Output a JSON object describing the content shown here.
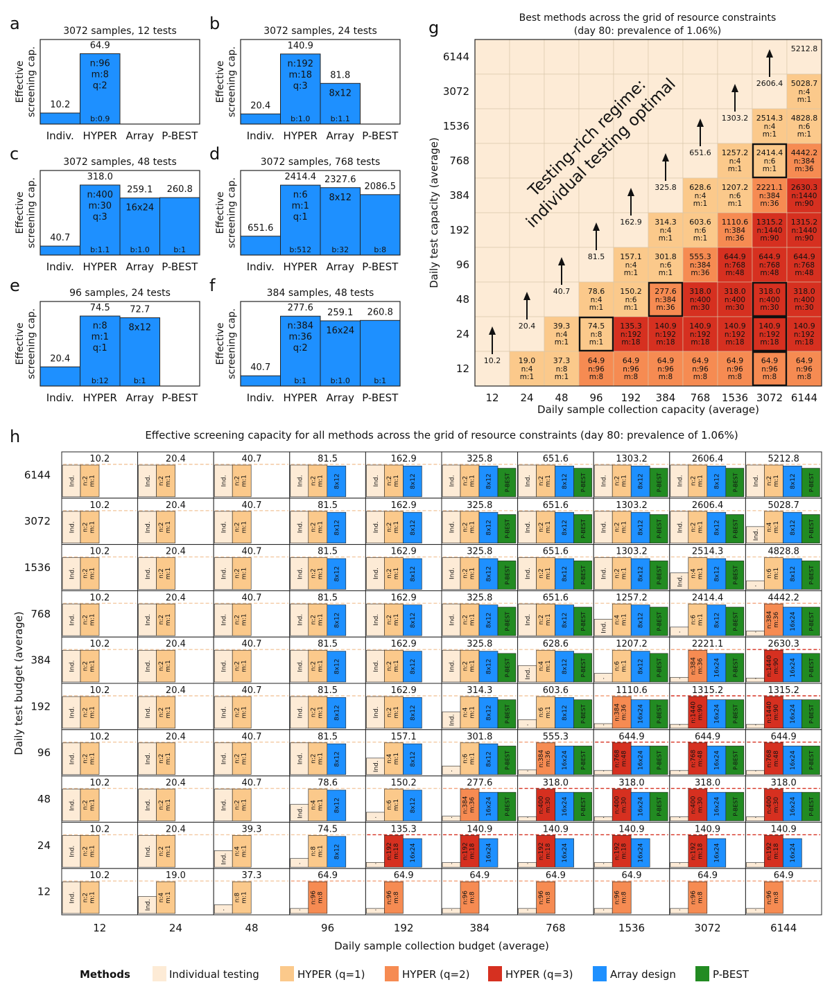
{
  "colors": {
    "individual": "#FDEBD6",
    "hyper_q1": "#FBC98B",
    "hyper_q2": "#F68B52",
    "hyper_q3": "#D63020",
    "array": "#1E90FF",
    "pbest": "#228B22",
    "grid_best": "#FDEBD6"
  },
  "chart_data": [
    {
      "panel": "a",
      "type": "bar",
      "title": "3072 samples, 12 tests",
      "ylabel": "Effective screening cap.",
      "categories": [
        "Indiv.",
        "HYPER",
        "Array",
        "P-BEST"
      ],
      "values": [
        10.2,
        64.9,
        null,
        null
      ],
      "value_labels": [
        "10.2",
        "64.9",
        "",
        ""
      ],
      "in_bar": [
        "",
        "n:96\nm:8\nq:2",
        "",
        ""
      ],
      "b_labels": [
        "",
        "b:0.9",
        "",
        ""
      ],
      "ylim": [
        0,
        78
      ]
    },
    {
      "panel": "b",
      "type": "bar",
      "title": "3072 samples, 24 tests",
      "ylabel": "Effective screening cap.",
      "categories": [
        "Indiv.",
        "HYPER",
        "Array",
        "P-BEST"
      ],
      "values": [
        20.4,
        140.9,
        81.8,
        null
      ],
      "value_labels": [
        "20.4",
        "140.9",
        "81.8",
        ""
      ],
      "in_bar": [
        "",
        "n:192\nm:18\nq:3",
        "8x12",
        ""
      ],
      "b_labels": [
        "",
        "b:1.0",
        "b:1.1",
        ""
      ],
      "ylim": [
        0,
        170
      ]
    },
    {
      "panel": "c",
      "type": "bar",
      "title": "3072 samples, 48 tests",
      "ylabel": "Effective screening cap.",
      "categories": [
        "Indiv.",
        "HYPER",
        "Array",
        "P-BEST"
      ],
      "values": [
        40.7,
        318.0,
        259.1,
        260.8
      ],
      "value_labels": [
        "40.7",
        "318.0",
        "259.1",
        "260.8"
      ],
      "in_bar": [
        "",
        "n:400\nm:30\nq:3",
        "16x24",
        ""
      ],
      "b_labels": [
        "",
        "b:1.1",
        "b:1.0",
        "b:1"
      ],
      "ylim": [
        0,
        384
      ]
    },
    {
      "panel": "d",
      "type": "bar",
      "title": "3072 samples, 768 tests",
      "ylabel": "Effective screening cap.",
      "categories": [
        "Indiv.",
        "HYPER",
        "Array",
        "P-BEST"
      ],
      "values": [
        651.6,
        2414.4,
        2327.6,
        2086.5
      ],
      "value_labels": [
        "651.6",
        "2414.4",
        "2327.6",
        "2086.5"
      ],
      "in_bar": [
        "",
        "n:6\nm:1\nq:1",
        "8x12",
        ""
      ],
      "b_labels": [
        "",
        "b:512",
        "b:32",
        "b:8"
      ],
      "ylim": [
        0,
        2920
      ]
    },
    {
      "panel": "e",
      "type": "bar",
      "title": "96 samples, 24 tests",
      "ylabel": "Effective screening cap.",
      "categories": [
        "Indiv.",
        "HYPER",
        "Array",
        "P-BEST"
      ],
      "values": [
        20.4,
        74.5,
        72.7,
        null
      ],
      "value_labels": [
        "20.4",
        "74.5",
        "72.7",
        ""
      ],
      "in_bar": [
        "",
        "n:8\nm:1\nq:1",
        "8x12",
        ""
      ],
      "b_labels": [
        "",
        "b:12",
        "b:1",
        ""
      ],
      "ylim": [
        0,
        90
      ]
    },
    {
      "panel": "f",
      "type": "bar",
      "title": "384 samples, 48 tests",
      "ylabel": "Effective screening cap.",
      "categories": [
        "Indiv.",
        "HYPER",
        "Array",
        "P-BEST"
      ],
      "values": [
        40.7,
        277.6,
        259.1,
        260.8
      ],
      "value_labels": [
        "40.7",
        "277.6",
        "259.1",
        "260.8"
      ],
      "in_bar": [
        "",
        "n:384\nm:36\nq:2",
        "16x24",
        ""
      ],
      "b_labels": [
        "",
        "b:1",
        "b:1.0",
        "b:1"
      ],
      "ylim": [
        0,
        336
      ]
    },
    {
      "panel": "g",
      "type": "heatmap",
      "title": "Best methods across the grid of resource constraints",
      "subtitle": "(day 80: prevalence of 1.06%)",
      "xlabel": "Daily sample collection capacity (average)",
      "ylabel": "Daily test capacity (average)",
      "x": [
        "12",
        "24",
        "48",
        "96",
        "192",
        "384",
        "768",
        "1536",
        "3072",
        "6144"
      ],
      "y": [
        "6144",
        "3072",
        "1536",
        "768",
        "384",
        "192",
        "96",
        "48",
        "24",
        "12"
      ],
      "annotation": "Testing-rich regime:\nindividual testing optimal",
      "cells": [
        [
          "",
          "",
          "",
          "",
          "",
          "",
          "",
          "",
          "",
          "5212.8|"
        ],
        [
          "",
          "",
          "",
          "",
          "",
          "",
          "",
          "",
          "2606.4|",
          "5028.7|n:4\nm:1|1"
        ],
        [
          "",
          "",
          "",
          "",
          "",
          "",
          "",
          "1303.2|",
          "2514.3|n:4\nm:1|1",
          "4828.8|n:6\nm:1|1"
        ],
        [
          "",
          "",
          "",
          "",
          "",
          "",
          "651.6|",
          "1257.2|n:4\nm:1|1",
          "2414.4|n:6\nm:1|1",
          "4442.2|n:384\nm:36|2"
        ],
        [
          "",
          "",
          "",
          "",
          "",
          "325.8|",
          "628.6|n:4\nm:1|1",
          "1207.2|n:6\nm:1|1",
          "2221.1|n:384\nm:36|2",
          "2630.3|n:1440\nm:90|3"
        ],
        [
          "",
          "",
          "",
          "",
          "162.9|",
          "314.3|n:4\nm:1|1",
          "603.6|n:6\nm:1|1",
          "1110.6|n:384\nm:36|2",
          "1315.2|n:1440\nm:90|3",
          "1315.2|n:1440\nm:90|3"
        ],
        [
          "",
          "",
          "",
          "81.5|",
          "157.1|n:4\nm:1|1",
          "301.8|n:6\nm:1|1",
          "555.3|n:384\nm:36|2",
          "644.9|n:768\nm:48|3",
          "644.9|n:768\nm:48|3",
          "644.9|n:768\nm:48|3"
        ],
        [
          "",
          "",
          "40.7|",
          "78.6|n:4\nm:1|1",
          "150.2|n:6\nm:1|1",
          "277.6|n:384\nm:36|2",
          "318.0|n:400\nm:30|3",
          "318.0|n:400\nm:30|3",
          "318.0|n:400\nm:30|3",
          "318.0|n:400\nm:30|3"
        ],
        [
          "",
          "20.4|",
          "39.3|n:4\nm:1|1",
          "74.5|n:8\nm:1|1",
          "135.3|n:192\nm:18|3",
          "140.9|n:192\nm:18|3",
          "140.9|n:192\nm:18|3",
          "140.9|n:192\nm:18|3",
          "140.9|n:192\nm:18|3",
          "140.9|n:192\nm:18|3"
        ],
        [
          "10.2|",
          "19.0|n:4\nm:1|1",
          "37.3|n:8\nm:1|1",
          "64.9|n:96\nm:8|2",
          "64.9|n:96\nm:8|2",
          "64.9|n:96\nm:8|2",
          "64.9|n:96\nm:8|2",
          "64.9|n:96\nm:8|2",
          "64.9|n:96\nm:8|2",
          "64.9|n:96\nm:8|2"
        ]
      ],
      "highlighted": [
        [
          3,
          8
        ],
        [
          7,
          5
        ],
        [
          7,
          8
        ],
        [
          8,
          3
        ],
        [
          8,
          8
        ],
        [
          9,
          8
        ]
      ]
    },
    {
      "panel": "h",
      "type": "bar",
      "title": "Effective screening capacity for all methods across the grid of resource constraints (day 80: prevalence of 1.06%)",
      "xlabel": "Daily sample collection budget (average)",
      "ylabel": "Daily test budget (average)",
      "x": [
        "12",
        "24",
        "48",
        "96",
        "192",
        "384",
        "768",
        "1536",
        "3072",
        "6144"
      ],
      "y": [
        "6144",
        "3072",
        "1536",
        "768",
        "384",
        "192",
        "96",
        "48",
        "24",
        "12"
      ],
      "max_values": [
        [
          "10.2",
          "20.4",
          "40.7",
          "81.5",
          "162.9",
          "325.8",
          "651.6",
          "1303.2",
          "2606.4",
          "5212.8"
        ],
        [
          "10.2",
          "20.4",
          "40.7",
          "81.5",
          "162.9",
          "325.8",
          "651.6",
          "1303.2",
          "2606.4",
          "5028.7"
        ],
        [
          "10.2",
          "20.4",
          "40.7",
          "81.5",
          "162.9",
          "325.8",
          "651.6",
          "1303.2",
          "2514.3",
          "4828.8"
        ],
        [
          "10.2",
          "20.4",
          "40.7",
          "81.5",
          "162.9",
          "325.8",
          "651.6",
          "1257.2",
          "2414.4",
          "4442.2"
        ],
        [
          "10.2",
          "20.4",
          "40.7",
          "81.5",
          "162.9",
          "325.8",
          "628.6",
          "1207.2",
          "2221.1",
          "2630.3"
        ],
        [
          "10.2",
          "20.4",
          "40.7",
          "81.5",
          "162.9",
          "314.3",
          "603.6",
          "1110.6",
          "1315.2",
          "1315.2"
        ],
        [
          "10.2",
          "20.4",
          "40.7",
          "81.5",
          "157.1",
          "301.8",
          "555.3",
          "644.9",
          "644.9",
          "644.9"
        ],
        [
          "10.2",
          "20.4",
          "40.7",
          "78.6",
          "150.2",
          "277.6",
          "318.0",
          "318.0",
          "318.0",
          "318.0"
        ],
        [
          "10.2",
          "20.4",
          "39.3",
          "74.5",
          "135.3",
          "140.9",
          "140.9",
          "140.9",
          "140.9",
          "140.9"
        ],
        [
          "10.2",
          "19.0",
          "37.3",
          "64.9",
          "64.9",
          "64.9",
          "64.9",
          "64.9",
          "64.9",
          "64.9"
        ]
      ]
    }
  ],
  "panel_letters": {
    "a": "a",
    "b": "b",
    "c": "c",
    "d": "d",
    "e": "e",
    "f": "f",
    "g": "g",
    "h": "h"
  },
  "legend": {
    "title": "Methods",
    "items": [
      "Individual testing",
      "HYPER (q=1)",
      "HYPER (q=2)",
      "HYPER (q=3)",
      "Array design",
      "P-BEST"
    ]
  },
  "small_labels": {
    "ind": "Ind.",
    "array_small": "8x12",
    "array_large": "16x24",
    "pbest": "P-BEST"
  }
}
